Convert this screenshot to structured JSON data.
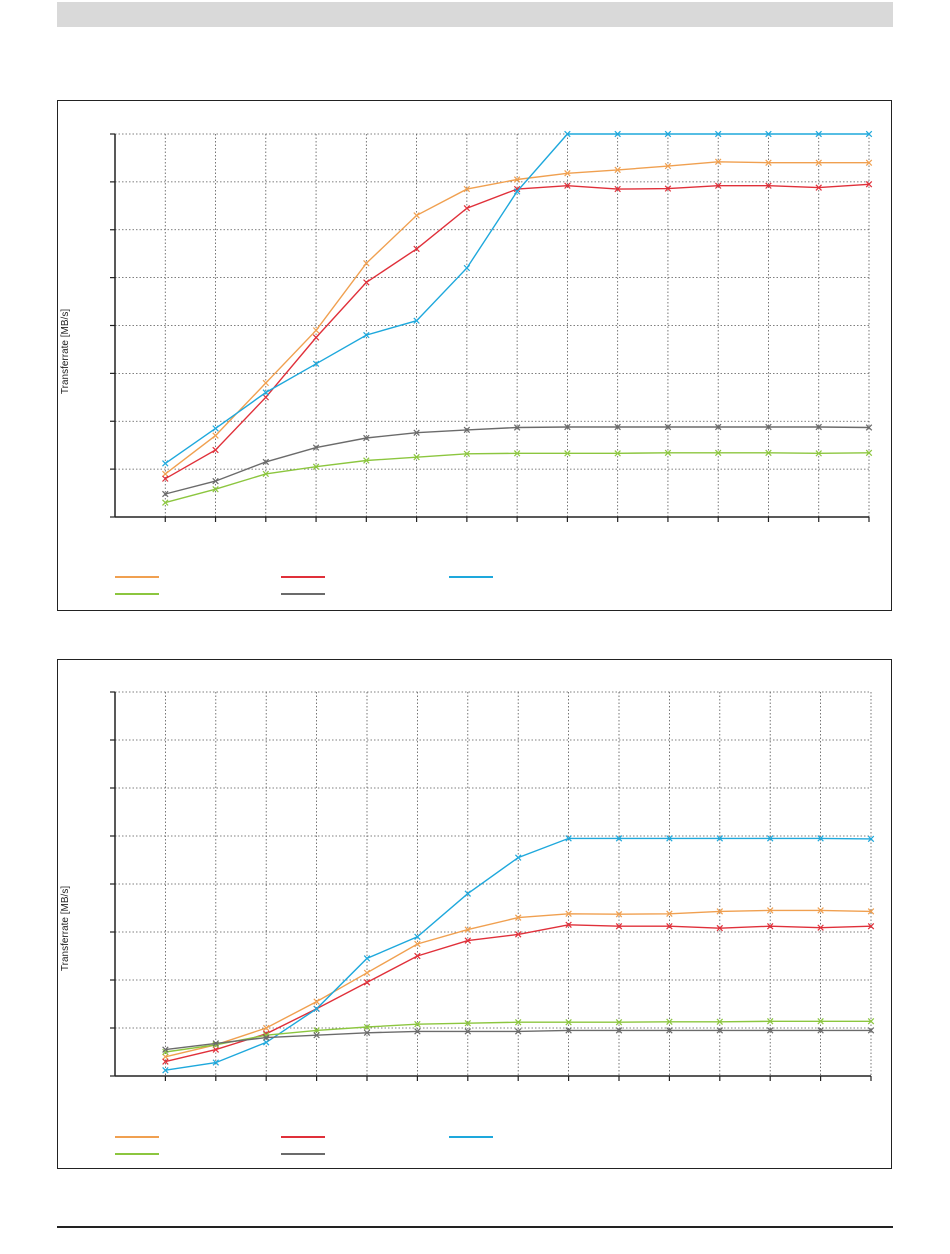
{
  "page": {
    "footer_text": ""
  },
  "chart_data": [
    {
      "type": "line",
      "title": "",
      "xlabel": "",
      "ylabel": "Transferrate [MB/s]",
      "ylim": [
        0,
        8
      ],
      "x": [
        1,
        2,
        3,
        4,
        5,
        6,
        7,
        8,
        9,
        10,
        11,
        12,
        13,
        14,
        15
      ],
      "grid": true,
      "legend": "bottom-left",
      "series": [
        {
          "color": "#f0a050",
          "values": [
            0.9,
            1.7,
            2.8,
            3.9,
            5.3,
            6.3,
            6.85,
            7.05,
            7.18,
            7.25,
            7.33,
            7.42,
            7.4,
            7.4,
            7.4
          ]
        },
        {
          "color": "#e0303a",
          "values": [
            0.8,
            1.4,
            2.5,
            3.75,
            4.9,
            5.6,
            6.45,
            6.85,
            6.92,
            6.85,
            6.86,
            6.92,
            6.92,
            6.88,
            6.95
          ]
        },
        {
          "color": "#1ea8dc",
          "values": [
            1.12,
            1.85,
            2.6,
            3.2,
            3.8,
            4.1,
            5.2,
            6.8,
            8.0,
            8.0,
            8.0,
            8.0,
            8.0,
            8.0,
            8.0
          ]
        },
        {
          "color": "#8cc63f",
          "values": [
            0.3,
            0.58,
            0.9,
            1.05,
            1.18,
            1.25,
            1.32,
            1.33,
            1.33,
            1.33,
            1.34,
            1.34,
            1.34,
            1.33,
            1.34
          ]
        },
        {
          "color": "#6b6b6b",
          "values": [
            0.48,
            0.75,
            1.15,
            1.45,
            1.65,
            1.76,
            1.82,
            1.87,
            1.88,
            1.88,
            1.88,
            1.88,
            1.88,
            1.88,
            1.87
          ]
        }
      ]
    },
    {
      "type": "line",
      "title": "",
      "xlabel": "",
      "ylabel": "Transferrate [MB/s]",
      "ylim": [
        0,
        8
      ],
      "x": [
        1,
        2,
        3,
        4,
        5,
        6,
        7,
        8,
        9,
        10,
        11,
        12,
        13,
        14,
        15
      ],
      "grid": true,
      "legend": "bottom-left",
      "series": [
        {
          "color": "#f0a050",
          "values": [
            0.4,
            0.65,
            1.0,
            1.55,
            2.15,
            2.75,
            3.05,
            3.3,
            3.38,
            3.37,
            3.38,
            3.43,
            3.45,
            3.45,
            3.43
          ]
        },
        {
          "color": "#e0303a",
          "values": [
            0.3,
            0.55,
            0.88,
            1.4,
            1.95,
            2.5,
            2.82,
            2.95,
            3.15,
            3.12,
            3.12,
            3.08,
            3.12,
            3.09,
            3.12
          ]
        },
        {
          "color": "#1ea8dc",
          "values": [
            0.12,
            0.28,
            0.7,
            1.4,
            2.45,
            2.9,
            3.8,
            4.55,
            4.95,
            4.95,
            4.95,
            4.95,
            4.95,
            4.95,
            4.94
          ]
        },
        {
          "color": "#8cc63f",
          "values": [
            0.5,
            0.65,
            0.85,
            0.95,
            1.02,
            1.08,
            1.1,
            1.12,
            1.12,
            1.12,
            1.13,
            1.13,
            1.14,
            1.14,
            1.14
          ]
        },
        {
          "color": "#6b6b6b",
          "values": [
            0.55,
            0.68,
            0.8,
            0.85,
            0.9,
            0.93,
            0.93,
            0.93,
            0.95,
            0.95,
            0.95,
            0.95,
            0.95,
            0.95,
            0.95
          ]
        }
      ]
    }
  ]
}
